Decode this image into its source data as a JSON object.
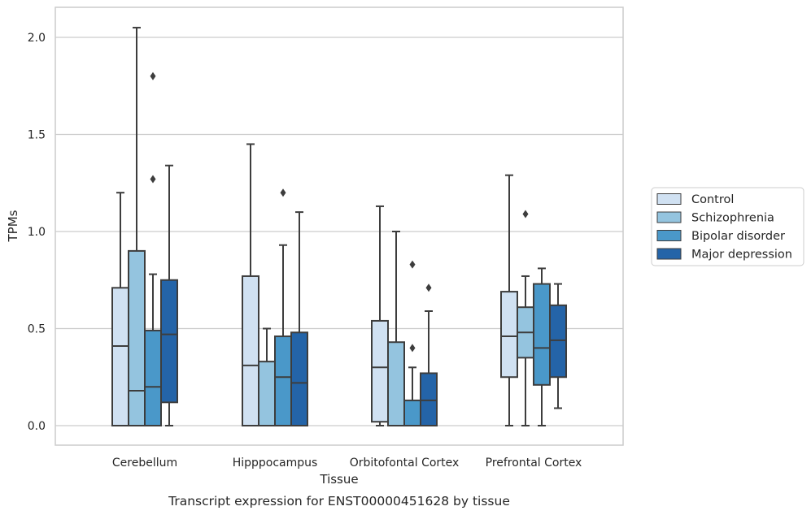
{
  "chart_data": {
    "type": "boxplot",
    "xlabel": "Tissue",
    "ylabel": "TPMs",
    "caption": "Transcript expression for ENST00000451628 by tissue",
    "ylim": [
      -0.1,
      2.15
    ],
    "yticks": [
      "0.0",
      "0.5",
      "1.0",
      "1.5",
      "2.0"
    ],
    "grid": "horizontal",
    "legend_position": "right",
    "categories": [
      "Cerebellum",
      "Hipppocampus",
      "Orbitofontal Cortex",
      "Prefrontal Cortex"
    ],
    "colors": [
      "#d0e1f2",
      "#94c4df",
      "#4a98c9",
      "#2464a8"
    ],
    "edge_color": "#3d3d3d",
    "series": [
      {
        "name": "Control",
        "boxes": [
          {
            "whislo": 0.0,
            "q1": 0.0,
            "med": 0.41,
            "q3": 0.71,
            "whishi": 1.2,
            "fliers": []
          },
          {
            "whislo": 0.0,
            "q1": 0.0,
            "med": 0.31,
            "q3": 0.77,
            "whishi": 1.45,
            "fliers": []
          },
          {
            "whislo": 0.0,
            "q1": 0.02,
            "med": 0.3,
            "q3": 0.54,
            "whishi": 1.13,
            "fliers": []
          },
          {
            "whislo": 0.0,
            "q1": 0.25,
            "med": 0.46,
            "q3": 0.69,
            "whishi": 1.29,
            "fliers": []
          }
        ]
      },
      {
        "name": "Schizophrenia",
        "boxes": [
          {
            "whislo": 0.0,
            "q1": 0.0,
            "med": 0.18,
            "q3": 0.9,
            "whishi": 2.05,
            "fliers": []
          },
          {
            "whislo": 0.0,
            "q1": 0.0,
            "med": 0.0,
            "q3": 0.33,
            "whishi": 0.5,
            "fliers": []
          },
          {
            "whislo": 0.0,
            "q1": 0.0,
            "med": 0.0,
            "q3": 0.43,
            "whishi": 1.0,
            "fliers": []
          },
          {
            "whislo": 0.0,
            "q1": 0.35,
            "med": 0.48,
            "q3": 0.61,
            "whishi": 0.77,
            "fliers": [
              1.09
            ]
          }
        ]
      },
      {
        "name": "Bipolar disorder",
        "boxes": [
          {
            "whislo": 0.0,
            "q1": 0.0,
            "med": 0.2,
            "q3": 0.49,
            "whishi": 0.78,
            "fliers": [
              1.27,
              1.8
            ]
          },
          {
            "whislo": 0.0,
            "q1": 0.0,
            "med": 0.25,
            "q3": 0.46,
            "whishi": 0.93,
            "fliers": [
              1.2
            ]
          },
          {
            "whislo": 0.0,
            "q1": 0.0,
            "med": 0.0,
            "q3": 0.13,
            "whishi": 0.3,
            "fliers": [
              0.4,
              0.83
            ]
          },
          {
            "whislo": 0.0,
            "q1": 0.21,
            "med": 0.4,
            "q3": 0.73,
            "whishi": 0.81,
            "fliers": []
          }
        ]
      },
      {
        "name": "Major depression",
        "boxes": [
          {
            "whislo": 0.0,
            "q1": 0.12,
            "med": 0.47,
            "q3": 0.75,
            "whishi": 1.34,
            "fliers": []
          },
          {
            "whislo": 0.0,
            "q1": 0.0,
            "med": 0.22,
            "q3": 0.48,
            "whishi": 1.1,
            "fliers": []
          },
          {
            "whislo": 0.0,
            "q1": 0.0,
            "med": 0.13,
            "q3": 0.27,
            "whishi": 0.59,
            "fliers": [
              0.71
            ]
          },
          {
            "whislo": 0.09,
            "q1": 0.25,
            "med": 0.44,
            "q3": 0.62,
            "whishi": 0.73,
            "fliers": []
          }
        ]
      }
    ]
  }
}
